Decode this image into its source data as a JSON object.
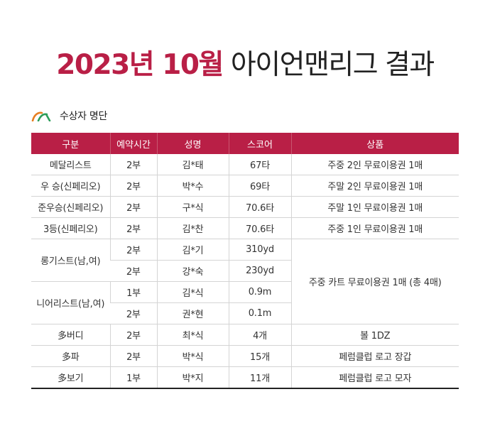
{
  "title": {
    "accent": "2023년 10월",
    "rest": "아이언맨리그 결과"
  },
  "section": {
    "label": "수상자 명단"
  },
  "colors": {
    "accent": "#b91f46",
    "logo_orange": "#e67e22",
    "logo_green": "#2e9e5b"
  },
  "table": {
    "headers": [
      "구분",
      "예약시간",
      "성명",
      "스코어",
      "상품"
    ],
    "rows": [
      {
        "category": "메달리스트",
        "time": "2부",
        "name": "김*태",
        "score": "67타",
        "prize": "주중 2인 무료이용권 1매"
      },
      {
        "category": "우 승(신페리오)",
        "time": "2부",
        "name": "박*수",
        "score": "69타",
        "prize": "주말 2인 무료이용권 1매"
      },
      {
        "category": "준우승(신페리오)",
        "time": "2부",
        "name": "구*식",
        "score": "70.6타",
        "prize": "주말 1인 무료이용권 1매"
      },
      {
        "category": "3등(신페리오)",
        "time": "2부",
        "name": "김*찬",
        "score": "70.6타",
        "prize": "주중 1인 무료이용권 1매"
      },
      {
        "category": "롱기스트(남,여)",
        "time": "2부",
        "name": "김*기",
        "score": "310yd",
        "prize": "주중 카트 무료이용권 1매 (총 4매)"
      },
      {
        "time": "2부",
        "name": "강*숙",
        "score": "230yd"
      },
      {
        "category": "니어리스트(남,여)",
        "time": "1부",
        "name": "김*식",
        "score": "0.9m"
      },
      {
        "time": "2부",
        "name": "권*현",
        "score": "0.1m"
      },
      {
        "category": "多버디",
        "time": "2부",
        "name": "최*식",
        "score": "4개",
        "prize": "볼 1DZ"
      },
      {
        "category": "多파",
        "time": "2부",
        "name": "박*식",
        "score": "15개",
        "prize": "페럼클럽 로고 장갑"
      },
      {
        "category": "多보기",
        "time": "1부",
        "name": "박*지",
        "score": "11개",
        "prize": "페럼클럽 로고 모자"
      }
    ]
  }
}
